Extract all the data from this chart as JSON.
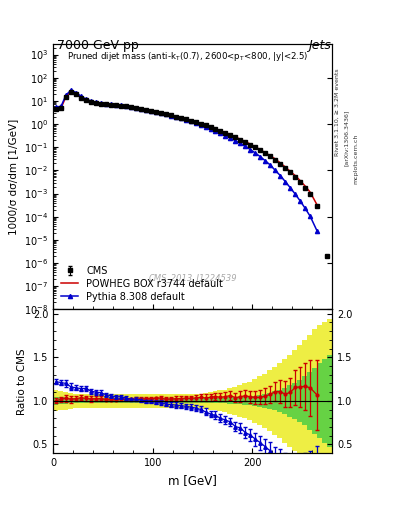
{
  "title_top": "7000 GeV pp",
  "title_right": "Jets",
  "plot_title": "Pruned dijet mass (anti-k_{T}(0.7), 2600<p_{T}<800, |y|<2.5)",
  "xlabel": "m [GeV]",
  "ylabel_main": "1000/σ dσ/dm [1/GeV]",
  "ylabel_ratio": "Ratio to CMS",
  "watermark": "CMS_2013_I1224539",
  "rivet_label": "Rivet 3.1.10, ≥ 3.2M events",
  "arxiv_label": "[arXiv:1306.3436]",
  "mcplots_label": "mcplots.cern.ch",
  "cms_data_x": [
    3,
    8,
    13,
    18,
    23,
    28,
    33,
    38,
    43,
    48,
    53,
    58,
    63,
    68,
    73,
    78,
    83,
    88,
    93,
    98,
    103,
    108,
    113,
    118,
    123,
    128,
    133,
    138,
    143,
    148,
    153,
    158,
    163,
    168,
    173,
    178,
    183,
    188,
    193,
    198,
    203,
    208,
    213,
    218,
    223,
    228,
    233,
    238,
    243,
    248,
    253,
    258,
    265,
    275
  ],
  "cms_data_y": [
    4.5,
    4.8,
    15.0,
    25.0,
    20.0,
    14.0,
    10.5,
    9.0,
    8.0,
    7.5,
    7.0,
    6.8,
    6.5,
    6.2,
    5.8,
    5.5,
    5.0,
    4.6,
    4.2,
    3.8,
    3.4,
    3.0,
    2.7,
    2.4,
    2.1,
    1.85,
    1.6,
    1.4,
    1.2,
    1.02,
    0.87,
    0.73,
    0.6,
    0.5,
    0.41,
    0.33,
    0.27,
    0.21,
    0.17,
    0.13,
    0.1,
    0.075,
    0.055,
    0.04,
    0.028,
    0.019,
    0.013,
    0.0082,
    0.0052,
    0.0031,
    0.0018,
    0.001,
    0.0003,
    2e-06
  ],
  "cms_data_yerr_lo": [
    0.3,
    0.4,
    1.5,
    2.0,
    1.5,
    1.0,
    0.7,
    0.5,
    0.4,
    0.4,
    0.3,
    0.3,
    0.3,
    0.25,
    0.22,
    0.2,
    0.18,
    0.16,
    0.14,
    0.12,
    0.1,
    0.09,
    0.08,
    0.07,
    0.06,
    0.055,
    0.048,
    0.042,
    0.036,
    0.031,
    0.026,
    0.022,
    0.018,
    0.015,
    0.012,
    0.01,
    0.008,
    0.006,
    0.005,
    0.004,
    0.003,
    0.0023,
    0.0017,
    0.0012,
    0.0009,
    0.0006,
    0.0004,
    0.00025,
    0.00016,
    0.0001,
    6e-05,
    3e-05,
    1e-05,
    2e-07
  ],
  "cms_data_yerr_hi": [
    0.3,
    0.4,
    1.5,
    2.0,
    1.5,
    1.0,
    0.7,
    0.5,
    0.4,
    0.4,
    0.3,
    0.3,
    0.3,
    0.25,
    0.22,
    0.2,
    0.18,
    0.16,
    0.14,
    0.12,
    0.1,
    0.09,
    0.08,
    0.07,
    0.06,
    0.055,
    0.048,
    0.042,
    0.036,
    0.031,
    0.026,
    0.022,
    0.018,
    0.015,
    0.012,
    0.01,
    0.008,
    0.006,
    0.005,
    0.004,
    0.003,
    0.0023,
    0.0017,
    0.0012,
    0.0009,
    0.0006,
    0.0004,
    0.00025,
    0.00016,
    0.0001,
    6e-05,
    3e-05,
    1e-05,
    2e-07
  ],
  "powheg_x": [
    3,
    8,
    13,
    18,
    23,
    28,
    33,
    38,
    43,
    48,
    53,
    58,
    63,
    68,
    73,
    78,
    83,
    88,
    93,
    98,
    103,
    108,
    113,
    118,
    123,
    128,
    133,
    138,
    143,
    148,
    153,
    158,
    163,
    168,
    173,
    178,
    183,
    188,
    193,
    198,
    203,
    208,
    213,
    218,
    223,
    228,
    233,
    238,
    243,
    248,
    253,
    258,
    265
  ],
  "powheg_y": [
    4.5,
    4.9,
    15.5,
    25.5,
    20.5,
    14.5,
    10.8,
    9.2,
    8.2,
    7.7,
    7.1,
    6.9,
    6.6,
    6.3,
    5.9,
    5.6,
    5.1,
    4.7,
    4.3,
    3.9,
    3.5,
    3.1,
    2.75,
    2.45,
    2.15,
    1.9,
    1.65,
    1.44,
    1.24,
    1.06,
    0.9,
    0.76,
    0.63,
    0.52,
    0.43,
    0.35,
    0.28,
    0.22,
    0.175,
    0.136,
    0.104,
    0.078,
    0.058,
    0.043,
    0.031,
    0.021,
    0.014,
    0.009,
    0.006,
    0.0036,
    0.0021,
    0.00115,
    0.00032
  ],
  "pythia_x": [
    3,
    8,
    13,
    18,
    23,
    28,
    33,
    38,
    43,
    48,
    53,
    58,
    63,
    68,
    73,
    78,
    83,
    88,
    93,
    98,
    103,
    108,
    113,
    118,
    123,
    128,
    133,
    138,
    143,
    148,
    153,
    158,
    163,
    168,
    173,
    178,
    183,
    188,
    193,
    198,
    203,
    208,
    213,
    218,
    223,
    228,
    233,
    238,
    243,
    248,
    253,
    258,
    265
  ],
  "pythia_y": [
    5.5,
    5.8,
    18.0,
    29.0,
    23.0,
    16.0,
    12.0,
    10.0,
    8.8,
    8.2,
    7.5,
    7.2,
    6.8,
    6.5,
    6.0,
    5.6,
    5.1,
    4.65,
    4.2,
    3.8,
    3.35,
    2.95,
    2.6,
    2.3,
    2.0,
    1.75,
    1.5,
    1.3,
    1.1,
    0.92,
    0.76,
    0.62,
    0.5,
    0.4,
    0.32,
    0.25,
    0.19,
    0.145,
    0.108,
    0.079,
    0.056,
    0.039,
    0.026,
    0.017,
    0.01,
    0.006,
    0.0033,
    0.0018,
    0.00095,
    0.00048,
    0.00023,
    0.000105,
    2.4e-05
  ],
  "ratio_powheg_x": [
    3,
    8,
    13,
    18,
    23,
    28,
    33,
    38,
    43,
    48,
    53,
    58,
    63,
    68,
    73,
    78,
    83,
    88,
    93,
    98,
    103,
    108,
    113,
    118,
    123,
    128,
    133,
    138,
    143,
    148,
    153,
    158,
    163,
    168,
    173,
    178,
    183,
    188,
    193,
    198,
    203,
    208,
    213,
    218,
    223,
    228,
    233,
    238,
    243,
    248,
    253,
    258,
    265
  ],
  "ratio_powheg_y": [
    1.0,
    1.02,
    1.03,
    1.02,
    1.025,
    1.036,
    1.029,
    1.022,
    1.025,
    1.027,
    1.014,
    1.015,
    1.015,
    1.016,
    1.017,
    1.018,
    1.02,
    1.022,
    1.024,
    1.026,
    1.029,
    1.033,
    1.019,
    1.021,
    1.024,
    1.027,
    1.031,
    1.029,
    1.033,
    1.039,
    1.034,
    1.041,
    1.05,
    1.04,
    1.049,
    1.061,
    1.037,
    1.048,
    1.059,
    1.046,
    1.04,
    1.04,
    1.055,
    1.075,
    1.107,
    1.105,
    1.077,
    1.098,
    1.154,
    1.161,
    1.167,
    1.15,
    1.067
  ],
  "ratio_powheg_yerr": [
    0.03,
    0.03,
    0.04,
    0.04,
    0.03,
    0.03,
    0.03,
    0.03,
    0.03,
    0.03,
    0.02,
    0.02,
    0.02,
    0.02,
    0.02,
    0.02,
    0.02,
    0.02,
    0.02,
    0.02,
    0.02,
    0.025,
    0.025,
    0.025,
    0.03,
    0.03,
    0.03,
    0.03,
    0.035,
    0.035,
    0.04,
    0.04,
    0.045,
    0.045,
    0.05,
    0.05,
    0.055,
    0.06,
    0.065,
    0.07,
    0.075,
    0.08,
    0.09,
    0.1,
    0.11,
    0.13,
    0.15,
    0.17,
    0.2,
    0.23,
    0.27,
    0.32,
    0.4
  ],
  "ratio_pythia_x": [
    3,
    8,
    13,
    18,
    23,
    28,
    33,
    38,
    43,
    48,
    53,
    58,
    63,
    68,
    73,
    78,
    83,
    88,
    93,
    98,
    103,
    108,
    113,
    118,
    123,
    128,
    133,
    138,
    143,
    148,
    153,
    158,
    163,
    168,
    173,
    178,
    183,
    188,
    193,
    198,
    203,
    208,
    213,
    218,
    223,
    228,
    233,
    238,
    243,
    248,
    253,
    258,
    265
  ],
  "ratio_pythia_y": [
    1.22,
    1.21,
    1.2,
    1.16,
    1.15,
    1.14,
    1.143,
    1.111,
    1.1,
    1.093,
    1.071,
    1.059,
    1.046,
    1.048,
    1.034,
    1.018,
    1.02,
    1.011,
    1.0,
    1.0,
    0.985,
    0.983,
    0.963,
    0.958,
    0.952,
    0.946,
    0.9375,
    0.929,
    0.917,
    0.902,
    0.874,
    0.849,
    0.833,
    0.8,
    0.78,
    0.758,
    0.704,
    0.69,
    0.635,
    0.608,
    0.56,
    0.52,
    0.473,
    0.425,
    0.357,
    0.316,
    0.254,
    0.22,
    0.183,
    0.155,
    0.128,
    0.105,
    0.08
  ],
  "ratio_pythia_yerr": [
    0.03,
    0.03,
    0.04,
    0.04,
    0.03,
    0.03,
    0.03,
    0.03,
    0.03,
    0.03,
    0.02,
    0.02,
    0.02,
    0.02,
    0.02,
    0.02,
    0.02,
    0.02,
    0.02,
    0.02,
    0.02,
    0.025,
    0.025,
    0.025,
    0.03,
    0.03,
    0.03,
    0.03,
    0.035,
    0.035,
    0.04,
    0.04,
    0.045,
    0.045,
    0.05,
    0.05,
    0.055,
    0.06,
    0.065,
    0.07,
    0.075,
    0.08,
    0.09,
    0.1,
    0.11,
    0.13,
    0.15,
    0.17,
    0.2,
    0.23,
    0.27,
    0.32,
    0.4
  ],
  "band_x_edges": [
    0,
    5,
    10,
    15,
    20,
    25,
    30,
    35,
    40,
    45,
    50,
    55,
    60,
    65,
    70,
    75,
    80,
    85,
    90,
    95,
    100,
    105,
    110,
    115,
    120,
    125,
    130,
    135,
    140,
    145,
    150,
    155,
    160,
    165,
    170,
    175,
    180,
    185,
    190,
    195,
    200,
    205,
    210,
    215,
    220,
    225,
    230,
    235,
    240,
    245,
    250,
    255,
    260,
    265,
    270,
    275,
    280
  ],
  "band_green_low": [
    0.95,
    0.96,
    0.96,
    0.97,
    0.97,
    0.97,
    0.97,
    0.97,
    0.97,
    0.97,
    0.97,
    0.97,
    0.97,
    0.97,
    0.97,
    0.97,
    0.97,
    0.97,
    0.97,
    0.97,
    0.97,
    0.97,
    0.97,
    0.97,
    0.97,
    0.97,
    0.97,
    0.97,
    0.97,
    0.97,
    0.97,
    0.97,
    0.97,
    0.97,
    0.97,
    0.96,
    0.96,
    0.96,
    0.95,
    0.95,
    0.94,
    0.93,
    0.92,
    0.91,
    0.89,
    0.87,
    0.85,
    0.82,
    0.79,
    0.76,
    0.72,
    0.67,
    0.62,
    0.57,
    0.52,
    0.47,
    0.42
  ],
  "band_green_high": [
    1.05,
    1.04,
    1.04,
    1.03,
    1.03,
    1.03,
    1.03,
    1.03,
    1.03,
    1.03,
    1.03,
    1.03,
    1.03,
    1.03,
    1.03,
    1.03,
    1.03,
    1.03,
    1.03,
    1.03,
    1.03,
    1.03,
    1.03,
    1.03,
    1.03,
    1.03,
    1.03,
    1.03,
    1.03,
    1.03,
    1.03,
    1.03,
    1.03,
    1.03,
    1.03,
    1.04,
    1.04,
    1.04,
    1.05,
    1.05,
    1.06,
    1.07,
    1.08,
    1.09,
    1.11,
    1.13,
    1.15,
    1.18,
    1.21,
    1.24,
    1.28,
    1.33,
    1.38,
    1.43,
    1.48,
    1.53,
    1.58
  ],
  "band_yellow_low": [
    0.88,
    0.89,
    0.9,
    0.91,
    0.92,
    0.92,
    0.92,
    0.92,
    0.92,
    0.92,
    0.92,
    0.92,
    0.92,
    0.92,
    0.92,
    0.92,
    0.92,
    0.92,
    0.92,
    0.92,
    0.92,
    0.92,
    0.92,
    0.92,
    0.92,
    0.92,
    0.92,
    0.92,
    0.92,
    0.92,
    0.91,
    0.9,
    0.89,
    0.88,
    0.87,
    0.85,
    0.84,
    0.82,
    0.8,
    0.78,
    0.75,
    0.72,
    0.69,
    0.65,
    0.61,
    0.57,
    0.52,
    0.47,
    0.42,
    0.36,
    0.3,
    0.24,
    0.18,
    0.13,
    0.09,
    0.06,
    0.04
  ],
  "band_yellow_high": [
    1.12,
    1.11,
    1.1,
    1.09,
    1.08,
    1.08,
    1.08,
    1.08,
    1.08,
    1.08,
    1.08,
    1.08,
    1.08,
    1.08,
    1.08,
    1.08,
    1.08,
    1.08,
    1.08,
    1.08,
    1.08,
    1.08,
    1.08,
    1.08,
    1.08,
    1.08,
    1.08,
    1.08,
    1.08,
    1.08,
    1.09,
    1.1,
    1.11,
    1.12,
    1.13,
    1.15,
    1.16,
    1.18,
    1.2,
    1.22,
    1.25,
    1.28,
    1.31,
    1.35,
    1.39,
    1.43,
    1.48,
    1.53,
    1.58,
    1.64,
    1.7,
    1.76,
    1.82,
    1.87,
    1.91,
    1.94,
    1.96
  ],
  "xlim_main": [
    0,
    280
  ],
  "ylim_main": [
    1e-08,
    3000.0
  ],
  "ylim_ratio": [
    0.4,
    2.05
  ],
  "color_cms": "#000000",
  "color_powheg": "#cc0000",
  "color_pythia": "#0000cc",
  "color_green_band": "#44cc44",
  "color_yellow_band": "#eeee44"
}
